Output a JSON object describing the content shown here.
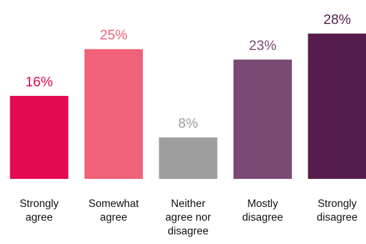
{
  "chart_data": {
    "type": "bar",
    "title": "",
    "xlabel": "",
    "ylabel": "",
    "ylim": [
      0,
      28
    ],
    "grid": false,
    "legend": "none",
    "categories": [
      [
        "Strongly",
        "agree"
      ],
      [
        "Somewhat",
        "agree"
      ],
      [
        "Neither",
        "agree nor",
        "disagree"
      ],
      [
        "Mostly",
        "disagree"
      ],
      [
        "Strongly",
        "disagree"
      ]
    ],
    "values": [
      16,
      25,
      8,
      23,
      28
    ],
    "value_labels": [
      "16%",
      "25%",
      "8%",
      "23%",
      "28%"
    ],
    "colors": [
      "#e5094f",
      "#ef6278",
      "#9e9e9e",
      "#7a4a75",
      "#571c4e"
    ]
  }
}
